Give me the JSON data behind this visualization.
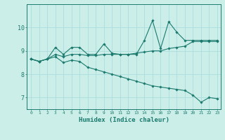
{
  "xlabel": "Humidex (Indice chaleur)",
  "bg_color": "#cceee8",
  "grid_color": "#aadddd",
  "line_color": "#1a7a6e",
  "xlim": [
    -0.5,
    23.4
  ],
  "ylim": [
    6.5,
    11.0
  ],
  "xticks": [
    0,
    1,
    2,
    3,
    4,
    5,
    6,
    7,
    8,
    9,
    10,
    11,
    12,
    13,
    14,
    15,
    16,
    17,
    18,
    19,
    20,
    21,
    22,
    23
  ],
  "yticks": [
    7,
    8,
    9,
    10
  ],
  "line1_x": [
    0,
    1,
    2,
    3,
    4,
    5,
    6,
    7,
    8,
    9,
    10,
    11,
    12,
    13,
    14,
    15,
    16,
    17,
    18,
    19,
    20,
    21,
    22,
    23
  ],
  "line1_y": [
    8.65,
    8.55,
    8.65,
    9.15,
    8.85,
    9.15,
    9.15,
    8.85,
    8.85,
    9.3,
    8.9,
    8.85,
    8.85,
    8.85,
    9.45,
    10.3,
    9.1,
    10.25,
    9.8,
    9.45,
    9.45,
    9.45,
    9.45,
    9.45
  ],
  "line2_x": [
    0,
    1,
    2,
    3,
    4,
    5,
    6,
    7,
    8,
    9,
    10,
    11,
    12,
    13,
    14,
    15,
    16,
    17,
    18,
    19,
    20,
    21,
    22,
    23
  ],
  "line2_y": [
    8.65,
    8.55,
    8.65,
    8.85,
    8.75,
    8.85,
    8.85,
    8.8,
    8.8,
    8.85,
    8.85,
    8.85,
    8.85,
    8.9,
    8.95,
    9.0,
    9.0,
    9.1,
    9.15,
    9.2,
    9.4,
    9.4,
    9.4,
    9.4
  ],
  "line3_x": [
    0,
    1,
    2,
    3,
    4,
    5,
    6,
    7,
    8,
    9,
    10,
    11,
    12,
    13,
    14,
    15,
    16,
    17,
    18,
    19,
    20,
    21,
    22,
    23
  ],
  "line3_y": [
    8.65,
    8.55,
    8.65,
    8.75,
    8.5,
    8.6,
    8.55,
    8.3,
    8.2,
    8.1,
    8.0,
    7.9,
    7.8,
    7.7,
    7.6,
    7.5,
    7.45,
    7.4,
    7.35,
    7.3,
    7.1,
    6.8,
    7.0,
    6.95
  ]
}
